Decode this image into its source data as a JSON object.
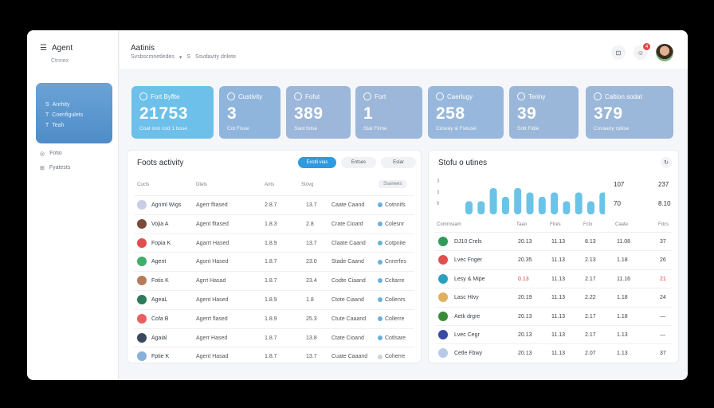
{
  "app": {
    "name": "Agent",
    "subtitle": "Ctnnex"
  },
  "sidebar": {
    "panel_items": [
      {
        "icon": "S",
        "label": "Anrhity"
      },
      {
        "icon": "T",
        "label": "Coenfigulets"
      },
      {
        "icon": "T",
        "label": "Teah"
      }
    ],
    "links": [
      {
        "label": "Fotio"
      },
      {
        "label": "Fyatests"
      }
    ]
  },
  "header": {
    "title": "Aatinis",
    "breadcrumb": [
      "Svsbscmnetledes",
      "▾",
      "S",
      "Ssvdavity dnlete"
    ],
    "notif_count": "4"
  },
  "stats": [
    {
      "label": "Fort Byflte",
      "value": "21753",
      "sub": "Coat oon cod 1 bose",
      "color": "#6cc0e9"
    },
    {
      "label": "Custivity",
      "value": "3",
      "sub": "Cot Fisse",
      "color": "#8fb5dd"
    },
    {
      "label": "Fofut",
      "value": "389",
      "sub": "Saot fotse",
      "color": "#9cb7d9"
    },
    {
      "label": "Fort",
      "value": "1",
      "sub": "Stat Fitme",
      "color": "#9cb7d9"
    },
    {
      "label": "Caerlugy",
      "value": "258",
      "sub": "Cosvay & Fsituse",
      "color": "#97b8dc"
    },
    {
      "label": "Teriny",
      "value": "39",
      "sub": "Sott Fidle",
      "color": "#9ab7d9"
    },
    {
      "label": "Caltion sodat",
      "value": "379",
      "sub": "Covaany rpilise",
      "color": "#9bb7d9"
    }
  ],
  "activity": {
    "title": "Foots activity",
    "filters": [
      "Exstli vias",
      "Entses",
      "Eslar"
    ],
    "filter_colors": [
      "#2f9ae0",
      "#f0f2f5",
      "#f0f2f5"
    ],
    "columns": [
      "Cucts",
      "Dtets",
      "Ants",
      "Stovg",
      "Ssanees"
    ],
    "rows": [
      {
        "name": "Agnml Wigs",
        "agent": "Agerr fltased",
        "v1": "2.8.7",
        "v2": "13.7",
        "status": "Caate Caand",
        "tag": "Cotnnifs",
        "avatar_color": "#c9cde6"
      },
      {
        "name": "Vojia A",
        "agent": "Agent fltased",
        "v1": "1.8.3",
        "v2": "2.8",
        "status": "Crate Cioard",
        "tag": "Colesnr",
        "avatar_color": "#7a4b3a"
      },
      {
        "name": "Fopia K",
        "agent": "Agarrt Hased",
        "v1": "1.8.9",
        "v2": "13.7",
        "status": "Claate Caand",
        "tag": "Cotpnite",
        "avatar_color": "#e05050"
      },
      {
        "name": "Agent",
        "agent": "Agont Hased",
        "v1": "1.8.7",
        "v2": "23.0",
        "status": "Stade Caand",
        "tag": "Cnrerfes",
        "avatar_color": "#3fae6a"
      },
      {
        "name": "Fotis K",
        "agent": "Agrrt Hasad",
        "v1": "1.8.7",
        "v2": "23.4",
        "status": "Codte Ciaand",
        "tag": "Ccltarre",
        "avatar_color": "#b57b5a"
      },
      {
        "name": "AgeaL",
        "agent": "Agent Hased",
        "v1": "1.8.9",
        "v2": "1.8",
        "status": "Ctote Ciaand",
        "tag": "Collenrs",
        "avatar_color": "#2f7a5c"
      },
      {
        "name": "Cofa B",
        "agent": "Agerrt flased",
        "v1": "1.8.9",
        "v2": "25.3",
        "status": "Ctute Caaand",
        "tag": "Collerre",
        "avatar_color": "#e86060"
      },
      {
        "name": "Agaial",
        "agent": "Agerr Hased",
        "v1": "1.8.7",
        "v2": "13.8",
        "status": "Ctate Cioand",
        "tag": "Cotlsare",
        "avatar_color": "#3a4a5c"
      },
      {
        "name": "Fptie K",
        "agent": "Agent Hasad",
        "v1": "1.8.7",
        "v2": "13.7",
        "status": "Cuate Caaand",
        "tag": "Coherre",
        "avatar_color": "#8ab0d8"
      }
    ],
    "tag_colors": [
      "#6ab0e0",
      "#6ab0e0",
      "#6ab0e0",
      "#6ab0e0",
      "#6ab0e0",
      "#6ab0e0",
      "#6ab0e0",
      "#6ab0e0",
      "#cfd4da"
    ]
  },
  "status": {
    "title": "Stofu o utines",
    "axis_ticks": [
      "3",
      "3",
      "6"
    ],
    "summary": [
      [
        "107",
        "237"
      ],
      [
        "70",
        "8.10"
      ]
    ],
    "columns": [
      "Comrnsiam",
      "Taao",
      "Ftres",
      "Fctx",
      "Caate",
      "Fdcs"
    ],
    "rows": [
      {
        "name": "DJ10 Crels",
        "c1": "20.13",
        "c2": "11.13",
        "c3": "8.13",
        "c4": "11.08",
        "c5": "37",
        "icon_color": "#2f9a5a",
        "highlight": false
      },
      {
        "name": "Lvec Fnger",
        "c1": "20.35",
        "c2": "11.13",
        "c3": "2.13",
        "c4": "1.18",
        "c5": "26",
        "icon_color": "#e05050",
        "highlight": false
      },
      {
        "name": "Lesy & Mipe",
        "c1": "0.13",
        "c2": "11.13",
        "c3": "2.17",
        "c4": "11.16",
        "c5": "21",
        "icon_color": "#2aa0c0",
        "highlight": true
      },
      {
        "name": "Lasc Htvy",
        "c1": "20.19",
        "c2": "11.13",
        "c3": "2.22",
        "c4": "1.18",
        "c5": "24",
        "icon_color": "#e0b060",
        "highlight": false
      },
      {
        "name": "Aetk drgre",
        "c1": "20.13",
        "c2": "11.13",
        "c3": "2.17",
        "c4": "1.18",
        "c5": "—",
        "icon_color": "#3a8a3a",
        "highlight": false
      },
      {
        "name": "Lvec Cegr",
        "c1": "20.13",
        "c2": "11.13",
        "c3": "2.17",
        "c4": "1.13",
        "c5": "—",
        "icon_color": "#3a4aa0",
        "highlight": false
      },
      {
        "name": "Cetle Fbwy",
        "c1": "20.13",
        "c2": "11.13",
        "c3": "2.07",
        "c4": "1.13",
        "c5": "37",
        "icon_color": "#b8c8e8",
        "highlight": false
      }
    ],
    "highlight_color": "#e04040"
  },
  "chart_data": {
    "type": "bar",
    "values": [
      3,
      3,
      6,
      4,
      6,
      5,
      4,
      5,
      3,
      5,
      3,
      5,
      7
    ],
    "color": "#6cc3e8"
  }
}
